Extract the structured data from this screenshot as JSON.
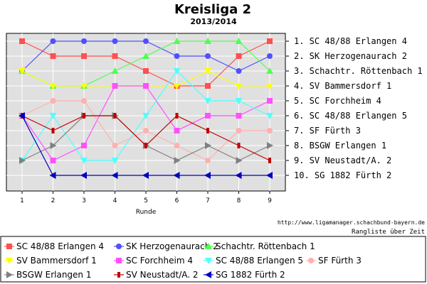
{
  "chart_data": {
    "type": "line",
    "title": "Kreisliga 2",
    "subtitle": "2013/2014",
    "xlabel": "Runde",
    "ylabel": "",
    "x": [
      1,
      2,
      3,
      4,
      5,
      6,
      7,
      8,
      9
    ],
    "ylim": [
      1,
      10
    ],
    "y_reversed": true,
    "grid": true,
    "legend_position": "bottom",
    "rank_labels": [
      "1. SC 48/88 Erlangen 4",
      "2. SK Herzogenaurach 2",
      "3. Schachtr. Röttenbach 1",
      "4. SV Bammersdorf 1",
      "5. SC Forchheim 4",
      "6. SC 48/88 Erlangen 5",
      "7. SF Fürth 3",
      "8. BSGW Erlangen 1",
      "9. SV Neustadt/A. 2",
      "10. SG 1882 Fürth 2"
    ],
    "credit_url": "http://www.ligamanager.schachbund-bayern.de",
    "credit_text": "Rangliste über Zeit",
    "series": [
      {
        "name": "SC 48/88 Erlangen 4",
        "color": "#ff5050",
        "marker": "square",
        "values": [
          1,
          2,
          2,
          2,
          3,
          4,
          4,
          2,
          1
        ]
      },
      {
        "name": "SK Herzogenaurach 2",
        "color": "#5050ff",
        "marker": "circle",
        "values": [
          3,
          1,
          1,
          1,
          1,
          2,
          2,
          3,
          2
        ]
      },
      {
        "name": "Schachtr. Röttenbach 1",
        "color": "#50ff50",
        "marker": "triangle-up",
        "values": [
          3,
          4,
          4,
          3,
          2,
          1,
          1,
          1,
          3
        ]
      },
      {
        "name": "SV Bammersdorf 1",
        "color": "#ffff00",
        "marker": "triangle-down",
        "values": [
          3,
          4,
          4,
          4,
          4,
          4,
          3,
          4,
          4
        ]
      },
      {
        "name": "SC Forchheim 4",
        "color": "#ff50ff",
        "marker": "square",
        "values": [
          6,
          9,
          8,
          4,
          4,
          7,
          6,
          6,
          5
        ]
      },
      {
        "name": "SC 48/88 Erlangen 5",
        "color": "#50ffff",
        "marker": "triangle-down",
        "values": [
          9,
          6,
          9,
          9,
          6,
          3,
          5,
          5,
          6
        ]
      },
      {
        "name": "SF Fürth 3",
        "color": "#ffb0b0",
        "marker": "circle",
        "values": [
          6,
          5,
          5,
          8,
          7,
          8,
          9,
          7,
          7
        ]
      },
      {
        "name": "BSGW Erlangen 1",
        "color": "#808080",
        "marker": "triangle-right",
        "values": [
          9,
          8,
          6,
          6,
          8,
          9,
          8,
          9,
          8
        ]
      },
      {
        "name": "SV Neustadt/A. 2",
        "color": "#c00000",
        "marker": "bar",
        "values": [
          6,
          7,
          6,
          6,
          8,
          6,
          7,
          8,
          9
        ]
      },
      {
        "name": "SG 1882 Fürth 2",
        "color": "#0000c0",
        "marker": "triangle-left",
        "values": [
          6,
          10,
          10,
          10,
          10,
          10,
          10,
          10,
          10
        ]
      }
    ]
  }
}
